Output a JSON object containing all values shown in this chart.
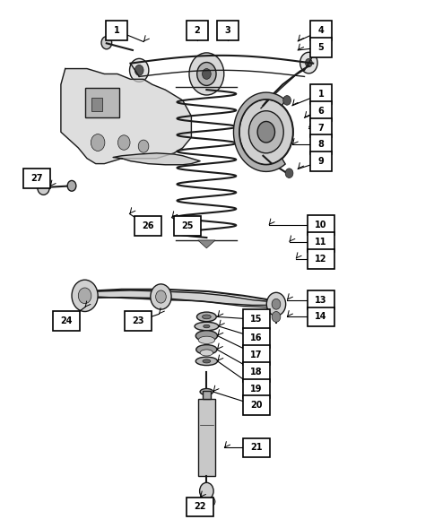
{
  "bg_color": "#ffffff",
  "label_border": "#000000",
  "figsize": [
    4.85,
    5.89
  ],
  "dpi": 100,
  "labels": [
    {
      "num": "1",
      "bx": 0.27,
      "by": 0.94
    },
    {
      "num": "2",
      "bx": 0.455,
      "by": 0.94
    },
    {
      "num": "3",
      "bx": 0.525,
      "by": 0.94
    },
    {
      "num": "4",
      "bx": 0.74,
      "by": 0.94
    },
    {
      "num": "5",
      "bx": 0.74,
      "by": 0.908
    },
    {
      "num": "1",
      "bx": 0.74,
      "by": 0.82
    },
    {
      "num": "6",
      "bx": 0.74,
      "by": 0.786
    },
    {
      "num": "7",
      "bx": 0.74,
      "by": 0.754
    },
    {
      "num": "8",
      "bx": 0.74,
      "by": 0.722
    },
    {
      "num": "9",
      "bx": 0.74,
      "by": 0.69
    },
    {
      "num": "10",
      "bx": 0.74,
      "by": 0.572
    },
    {
      "num": "11",
      "bx": 0.74,
      "by": 0.54
    },
    {
      "num": "12",
      "bx": 0.74,
      "by": 0.508
    },
    {
      "num": "13",
      "bx": 0.74,
      "by": 0.43
    },
    {
      "num": "14",
      "bx": 0.74,
      "by": 0.398
    },
    {
      "num": "15",
      "bx": 0.59,
      "by": 0.385
    },
    {
      "num": "16",
      "bx": 0.59,
      "by": 0.353
    },
    {
      "num": "17",
      "bx": 0.59,
      "by": 0.321
    },
    {
      "num": "18",
      "bx": 0.59,
      "by": 0.289
    },
    {
      "num": "19",
      "bx": 0.59,
      "by": 0.257
    },
    {
      "num": "20",
      "bx": 0.59,
      "by": 0.225
    },
    {
      "num": "21",
      "bx": 0.59,
      "by": 0.143
    },
    {
      "num": "22",
      "bx": 0.46,
      "by": 0.038
    },
    {
      "num": "23",
      "bx": 0.318,
      "by": 0.385
    },
    {
      "num": "24",
      "bx": 0.155,
      "by": 0.385
    },
    {
      "num": "25",
      "bx": 0.43,
      "by": 0.57
    },
    {
      "num": "26",
      "bx": 0.34,
      "by": 0.57
    },
    {
      "num": "27",
      "bx": 0.085,
      "by": 0.66
    }
  ],
  "lines": [
    {
      "from": [
        0.27,
        0.94
      ],
      "to": [
        0.33,
        0.92
      ]
    },
    {
      "from": [
        0.455,
        0.94
      ],
      "to": [
        0.455,
        0.922
      ]
    },
    {
      "from": [
        0.525,
        0.94
      ],
      "to": [
        0.525,
        0.922
      ]
    },
    {
      "from": [
        0.74,
        0.94
      ],
      "to": [
        0.68,
        0.92
      ]
    },
    {
      "from": [
        0.74,
        0.908
      ],
      "to": [
        0.68,
        0.905
      ]
    },
    {
      "from": [
        0.74,
        0.82
      ],
      "to": [
        0.665,
        0.8
      ]
    },
    {
      "from": [
        0.74,
        0.786
      ],
      "to": [
        0.695,
        0.775
      ]
    },
    {
      "from": [
        0.74,
        0.754
      ],
      "to": [
        0.71,
        0.754
      ]
    },
    {
      "from": [
        0.74,
        0.722
      ],
      "to": [
        0.71,
        0.722
      ]
    },
    {
      "from": [
        0.74,
        0.69
      ],
      "to": [
        0.68,
        0.675
      ]
    },
    {
      "from": [
        0.74,
        0.572
      ],
      "to": [
        0.615,
        0.572
      ]
    },
    {
      "from": [
        0.74,
        0.54
      ],
      "to": [
        0.68,
        0.54
      ]
    },
    {
      "from": [
        0.74,
        0.508
      ],
      "to": [
        0.7,
        0.508
      ]
    },
    {
      "from": [
        0.74,
        0.43
      ],
      "to": [
        0.68,
        0.43
      ]
    },
    {
      "from": [
        0.74,
        0.398
      ],
      "to": [
        0.67,
        0.398
      ]
    },
    {
      "from": [
        0.59,
        0.385
      ],
      "to": [
        0.51,
        0.382
      ]
    },
    {
      "from": [
        0.59,
        0.353
      ],
      "to": [
        0.51,
        0.35
      ]
    },
    {
      "from": [
        0.59,
        0.321
      ],
      "to": [
        0.51,
        0.318
      ]
    },
    {
      "from": [
        0.59,
        0.289
      ],
      "to": [
        0.51,
        0.286
      ]
    },
    {
      "from": [
        0.59,
        0.257
      ],
      "to": [
        0.51,
        0.254
      ]
    },
    {
      "from": [
        0.59,
        0.225
      ],
      "to": [
        0.51,
        0.24
      ]
    },
    {
      "from": [
        0.59,
        0.143
      ],
      "to": [
        0.51,
        0.143
      ]
    },
    {
      "from": [
        0.46,
        0.038
      ],
      "to": [
        0.46,
        0.055
      ]
    },
    {
      "from": [
        0.318,
        0.385
      ],
      "to": [
        0.38,
        0.4
      ]
    },
    {
      "from": [
        0.155,
        0.385
      ],
      "to": [
        0.225,
        0.415
      ]
    },
    {
      "from": [
        0.43,
        0.57
      ],
      "to": [
        0.395,
        0.585
      ]
    },
    {
      "from": [
        0.34,
        0.57
      ],
      "to": [
        0.295,
        0.595
      ]
    },
    {
      "from": [
        0.085,
        0.66
      ],
      "to": [
        0.145,
        0.66
      ]
    }
  ]
}
